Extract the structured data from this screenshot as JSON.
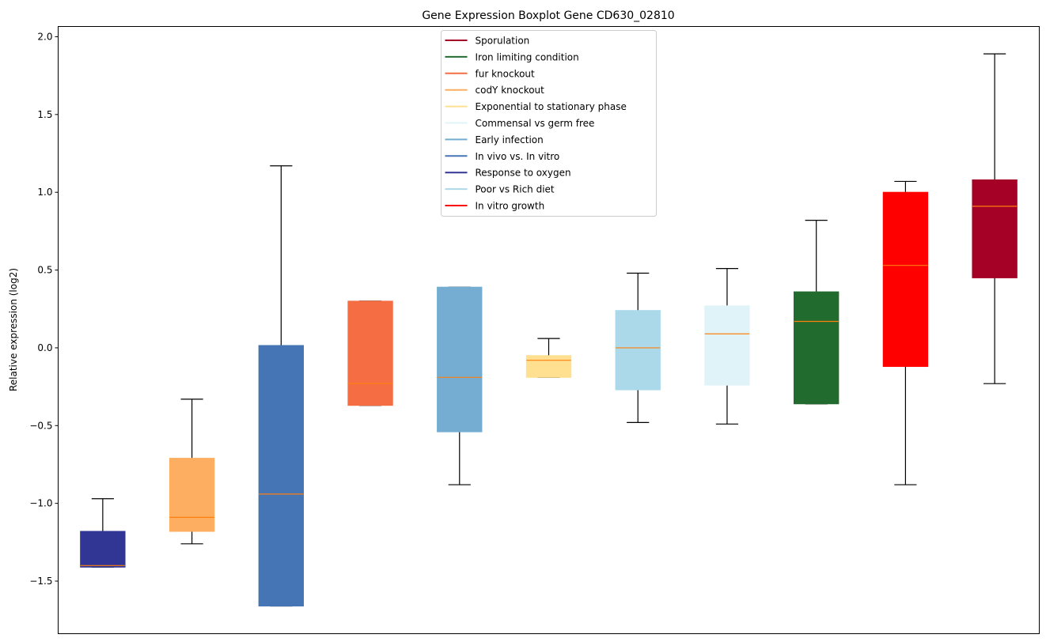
{
  "chart_data": {
    "type": "box",
    "title": "Gene Expression Boxplot Gene CD630_02810",
    "xlabel": "",
    "ylabel": "Relative expression (log2)",
    "ylim": [
      -1.838,
      2.066
    ],
    "yticks": [
      -1.5,
      -1.0,
      -0.5,
      0.0,
      0.5,
      1.0,
      1.5,
      2.0
    ],
    "ytick_labels": [
      "−1.5",
      "−1.0",
      "−0.5",
      "0.0",
      "0.5",
      "1.0",
      "1.5",
      "2.0"
    ],
    "xticks_visible": false,
    "grid": false,
    "legend_position": "top-center",
    "median_color": "#ff7f0e",
    "series": [
      {
        "name": "Response to oxygen",
        "color": "#313695",
        "whisker_low": -1.41,
        "q1": -1.41,
        "median": -1.4,
        "q3": -1.18,
        "whisker_high": -0.97
      },
      {
        "name": "codY knockout",
        "color": "#fdae61",
        "whisker_low": -1.26,
        "q1": -1.18,
        "median": -1.09,
        "q3": -0.71,
        "whisker_high": -0.33
      },
      {
        "name": "In vivo vs. In vitro",
        "color": "#4575b4",
        "whisker_low": -1.66,
        "q1": -1.66,
        "median": -0.94,
        "q3": 0.015,
        "whisker_high": 1.17
      },
      {
        "name": "fur knockout",
        "color": "#f46d43",
        "whisker_low": -0.37,
        "q1": -0.37,
        "median": -0.23,
        "q3": 0.3,
        "whisker_high": 0.3
      },
      {
        "name": "Early infection",
        "color": "#74add1",
        "whisker_low": -0.88,
        "q1": -0.54,
        "median": -0.19,
        "q3": 0.39,
        "whisker_high": 0.39
      },
      {
        "name": "Exponential to stationary phase",
        "color": "#fee090",
        "whisker_low": -0.19,
        "q1": -0.19,
        "median": -0.08,
        "q3": -0.05,
        "whisker_high": 0.06
      },
      {
        "name": "Poor vs Rich diet",
        "color": "#abd9e9",
        "whisker_low": -0.48,
        "q1": -0.27,
        "median": 0.0,
        "q3": 0.24,
        "whisker_high": 0.48
      },
      {
        "name": "Commensal vs germ free",
        "color": "#e0f3f8",
        "whisker_low": -0.49,
        "q1": -0.24,
        "median": 0.09,
        "q3": 0.27,
        "whisker_high": 0.51
      },
      {
        "name": "Iron limiting condition",
        "color": "#226b2e",
        "whisker_low": -0.36,
        "q1": -0.36,
        "median": 0.17,
        "q3": 0.36,
        "whisker_high": 0.82
      },
      {
        "name": "In vitro growth",
        "color": "#ff0000",
        "whisker_low": -0.88,
        "q1": -0.12,
        "median": 0.53,
        "q3": 1.0,
        "whisker_high": 1.07
      },
      {
        "name": "Sporulation",
        "color": "#a50026",
        "whisker_low": -0.23,
        "q1": 0.45,
        "median": 0.91,
        "q3": 1.08,
        "whisker_high": 1.89
      }
    ],
    "legend": [
      {
        "label": "Sporulation",
        "color": "#a50026"
      },
      {
        "label": "Iron limiting condition",
        "color": "#226b2e"
      },
      {
        "label": "fur knockout",
        "color": "#f46d43"
      },
      {
        "label": "codY knockout",
        "color": "#fdae61"
      },
      {
        "label": "Exponential to stationary phase",
        "color": "#fee090"
      },
      {
        "label": "Commensal vs germ free",
        "color": "#e0f3f8"
      },
      {
        "label": "Early infection",
        "color": "#74add1"
      },
      {
        "label": "In vivo vs. In vitro",
        "color": "#4575b4"
      },
      {
        "label": "Response to oxygen",
        "color": "#313695"
      },
      {
        "label": "Poor vs Rich diet",
        "color": "#abd9e9"
      },
      {
        "label": "In vitro growth",
        "color": "#ff0000"
      }
    ]
  }
}
